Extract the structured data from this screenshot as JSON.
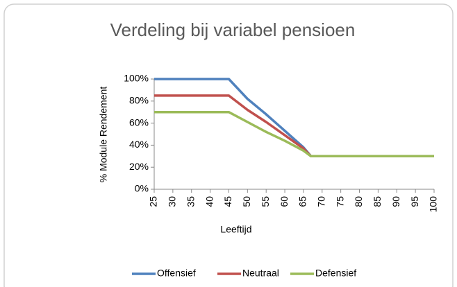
{
  "chart_data": {
    "type": "line",
    "title": "Verdeling bij variabel pensioen",
    "xlabel": "Leeftijd",
    "ylabel": "% Module Rendement",
    "x": [
      25,
      30,
      35,
      40,
      45,
      50,
      55,
      60,
      65,
      67,
      70,
      75,
      80,
      85,
      90,
      95,
      100
    ],
    "series": [
      {
        "name": "Offensief",
        "color": "#4f81bd",
        "values": [
          100,
          100,
          100,
          100,
          100,
          82,
          68,
          53,
          38,
          30,
          30,
          30,
          30,
          30,
          30,
          30,
          30
        ]
      },
      {
        "name": "Neutraal",
        "color": "#c0504d",
        "values": [
          85,
          85,
          85,
          85,
          85,
          72,
          61,
          49,
          37,
          30,
          30,
          30,
          30,
          30,
          30,
          30,
          30
        ]
      },
      {
        "name": "Defensief",
        "color": "#9bbb59",
        "values": [
          70,
          70,
          70,
          70,
          70,
          61,
          52,
          44,
          35,
          30,
          30,
          30,
          30,
          30,
          30,
          30,
          30
        ]
      }
    ],
    "xlim": [
      25,
      100
    ],
    "xticks": [
      25,
      30,
      35,
      40,
      45,
      50,
      55,
      60,
      65,
      70,
      75,
      80,
      85,
      90,
      95,
      100
    ],
    "ylim": [
      0,
      100
    ],
    "yticks": [
      {
        "value": 0,
        "label": "0%"
      },
      {
        "value": 20,
        "label": "20%"
      },
      {
        "value": 40,
        "label": "40%"
      },
      {
        "value": 60,
        "label": "60%"
      },
      {
        "value": 80,
        "label": "80%"
      },
      {
        "value": 100,
        "label": "100%"
      }
    ],
    "grid": false,
    "legend": "bottom"
  }
}
